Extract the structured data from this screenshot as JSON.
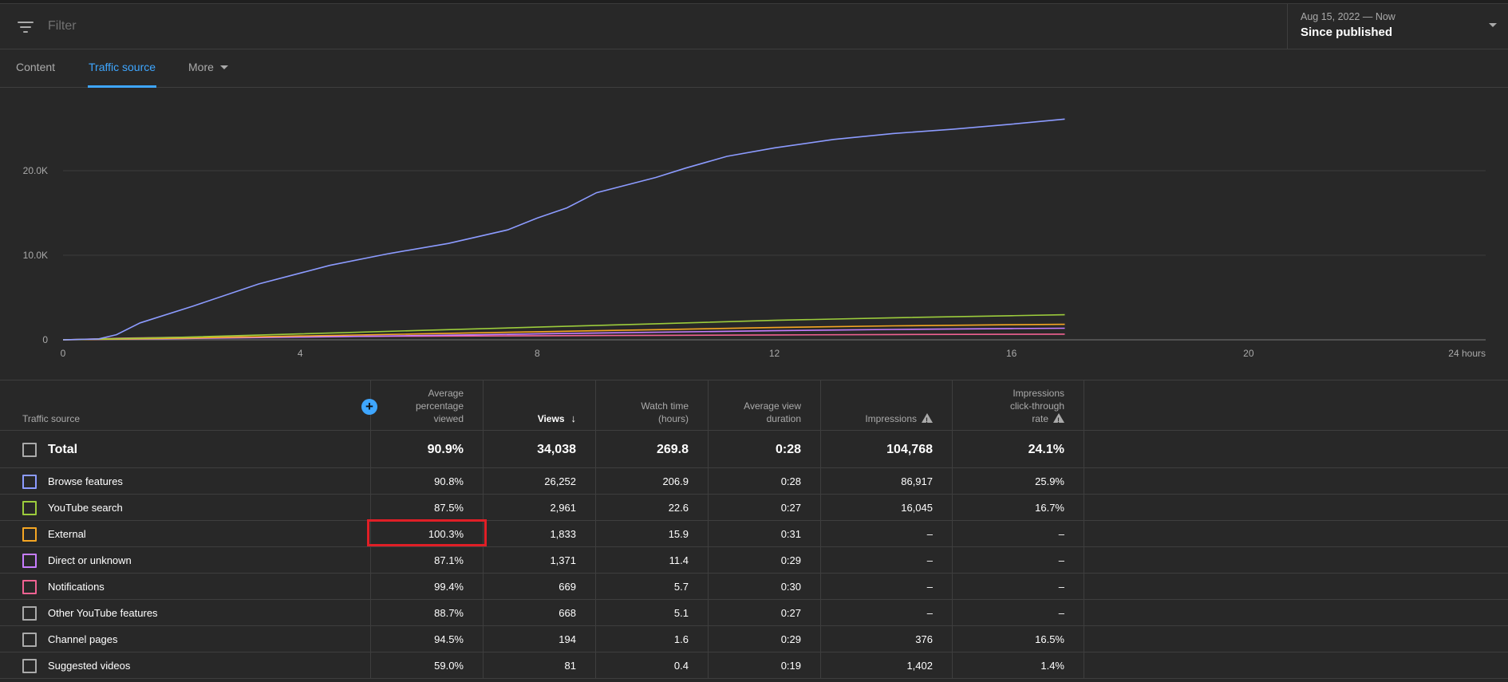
{
  "filter": {
    "placeholder": "Filter"
  },
  "date_selector": {
    "range": "Aug 15, 2022 — Now",
    "label": "Since published"
  },
  "tabs": [
    {
      "label": "Content",
      "active": false
    },
    {
      "label": "Traffic source",
      "active": true
    },
    {
      "label": "More",
      "active": false
    }
  ],
  "colors": {
    "accent": "#3ea6ff",
    "highlight": "#e01f26",
    "browse": "#8c9bff",
    "search": "#9ccc3c",
    "external": "#f5a623",
    "direct": "#c77dff",
    "notifications": "#f06292",
    "neutral": "#aaaaaa"
  },
  "chart_data": {
    "type": "line",
    "xlabel": "",
    "ylabel": "",
    "xlim": [
      0,
      24
    ],
    "ylim": [
      0,
      30000
    ],
    "x_ticks": [
      "0",
      "4",
      "8",
      "12",
      "16",
      "20",
      "24 hours"
    ],
    "x_tick_values": [
      0,
      4,
      8,
      12,
      16,
      20,
      24
    ],
    "y_ticks": [
      "0",
      "10.0K",
      "20.0K"
    ],
    "y_tick_values": [
      0,
      10000,
      20000
    ],
    "series": [
      {
        "name": "Browse features",
        "color": "#8c9bff",
        "x": [
          0,
          0.6,
          0.9,
          1.3,
          2.2,
          3.3,
          4.5,
          5.5,
          6.5,
          7.5,
          8.0,
          8.5,
          9.0,
          10.0,
          10.5,
          11.2,
          12.0,
          13.0,
          14.0,
          15.0,
          16.0,
          16.9
        ],
        "y": [
          0,
          100,
          600,
          2000,
          4000,
          6600,
          8800,
          10200,
          11400,
          13000,
          14400,
          15600,
          17400,
          19200,
          20300,
          21700,
          22700,
          23700,
          24400,
          24900,
          25500,
          26100
        ]
      },
      {
        "name": "YouTube search",
        "color": "#9ccc3c",
        "x": [
          0,
          2,
          4,
          6,
          8,
          10,
          12,
          14,
          16,
          16.9
        ],
        "y": [
          0,
          300,
          700,
          1100,
          1500,
          1900,
          2300,
          2600,
          2850,
          2961
        ]
      },
      {
        "name": "External",
        "color": "#f5a623",
        "x": [
          0,
          2,
          4,
          6,
          8,
          10,
          12,
          14,
          16,
          16.9
        ],
        "y": [
          0,
          200,
          450,
          700,
          950,
          1200,
          1450,
          1650,
          1780,
          1833
        ]
      },
      {
        "name": "Direct or unknown",
        "color": "#c77dff",
        "x": [
          0,
          2,
          4,
          6,
          8,
          10,
          12,
          14,
          16,
          16.9
        ],
        "y": [
          0,
          150,
          320,
          500,
          700,
          900,
          1080,
          1230,
          1330,
          1371
        ]
      },
      {
        "name": "Notifications",
        "color": "#f06292",
        "x": [
          0,
          1,
          2,
          4,
          6,
          8,
          10,
          12,
          14,
          16,
          16.9
        ],
        "y": [
          0,
          200,
          300,
          380,
          430,
          480,
          530,
          580,
          620,
          655,
          669
        ]
      }
    ]
  },
  "table": {
    "headers": {
      "source": "Traffic source",
      "avg_pct": "Average\npercentage\nviewed",
      "views": "Views",
      "watch": "Watch time\n(hours)",
      "avg_dur": "Average view\nduration",
      "impr": "Impressions",
      "ctr": "Impressions\nclick-through\nrate"
    },
    "total": {
      "name": "Total",
      "avg_pct": "90.9%",
      "views": "34,038",
      "watch": "269.8",
      "avg_dur": "0:28",
      "impr": "104,768",
      "ctr": "24.1%"
    },
    "rows": [
      {
        "name": "Browse features",
        "color": "#8c9bff",
        "avg_pct": "90.8%",
        "views": "26,252",
        "watch": "206.9",
        "avg_dur": "0:28",
        "impr": "86,917",
        "ctr": "25.9%"
      },
      {
        "name": "YouTube search",
        "color": "#9ccc3c",
        "avg_pct": "87.5%",
        "views": "2,961",
        "watch": "22.6",
        "avg_dur": "0:27",
        "impr": "16,045",
        "ctr": "16.7%"
      },
      {
        "name": "External",
        "color": "#f5a623",
        "avg_pct": "100.3%",
        "views": "1,833",
        "watch": "15.9",
        "avg_dur": "0:31",
        "impr": "–",
        "ctr": "–"
      },
      {
        "name": "Direct or unknown",
        "color": "#c77dff",
        "avg_pct": "87.1%",
        "views": "1,371",
        "watch": "11.4",
        "avg_dur": "0:29",
        "impr": "–",
        "ctr": "–"
      },
      {
        "name": "Notifications",
        "color": "#f06292",
        "avg_pct": "99.4%",
        "views": "669",
        "watch": "5.7",
        "avg_dur": "0:30",
        "impr": "–",
        "ctr": "–"
      },
      {
        "name": "Other YouTube features",
        "color": "#aaaaaa",
        "avg_pct": "88.7%",
        "views": "668",
        "watch": "5.1",
        "avg_dur": "0:27",
        "impr": "–",
        "ctr": "–"
      },
      {
        "name": "Channel pages",
        "color": "#aaaaaa",
        "avg_pct": "94.5%",
        "views": "194",
        "watch": "1.6",
        "avg_dur": "0:29",
        "impr": "376",
        "ctr": "16.5%"
      },
      {
        "name": "Suggested videos",
        "color": "#aaaaaa",
        "avg_pct": "59.0%",
        "views": "81",
        "watch": "0.4",
        "avg_dur": "0:19",
        "impr": "1,402",
        "ctr": "1.4%"
      }
    ]
  }
}
